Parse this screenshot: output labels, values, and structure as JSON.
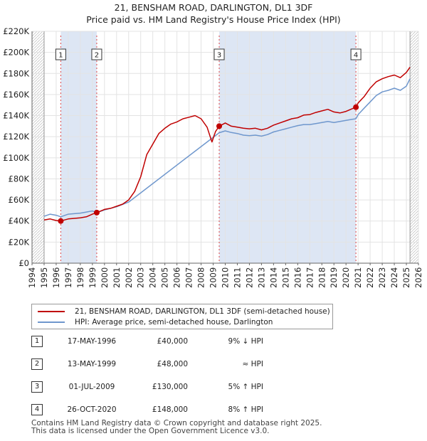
{
  "title_line1": "21, BENSHAM ROAD, DARLINGTON, DL1 3DF",
  "title_line2": "Price paid vs. HM Land Registry's House Price Index (HPI)",
  "colors": {
    "price_line": "#c00000",
    "hpi_line": "#6f97cd",
    "shade": "#dde6f4",
    "marker_line": "#dd4444"
  },
  "legend": {
    "price_label": "21, BENSHAM ROAD, DARLINGTON, DL1 3DF (semi-detached house)",
    "hpi_label": "HPI: Average price, semi-detached house, Darlington"
  },
  "transactions": [
    {
      "num": "1",
      "date": "17-MAY-1996",
      "price": "£40,000",
      "hpi": "9% ↓ HPI"
    },
    {
      "num": "2",
      "date": "13-MAY-1999",
      "price": "£48,000",
      "hpi": "≈ HPI"
    },
    {
      "num": "3",
      "date": "01-JUL-2009",
      "price": "£130,000",
      "hpi": "5% ↑ HPI"
    },
    {
      "num": "4",
      "date": "26-OCT-2020",
      "price": "£148,000",
      "hpi": "8% ↑ HPI"
    }
  ],
  "footer": {
    "line1": "Contains HM Land Registry data © Crown copyright and database right 2025.",
    "line2": "This data is licensed under the Open Government Licence v3.0."
  },
  "chart_data": {
    "type": "line",
    "title": "21, BENSHAM ROAD, DARLINGTON, DL1 3DF",
    "subtitle": "Price paid vs. HM Land Registry's House Price Index (HPI)",
    "xlabel": "",
    "ylabel": "",
    "xlim": [
      1994,
      2026
    ],
    "ylim": [
      0,
      220000
    ],
    "x_ticks": [
      "1994",
      "1995",
      "1996",
      "1997",
      "1998",
      "1999",
      "2000",
      "2001",
      "2002",
      "2003",
      "2004",
      "2005",
      "2006",
      "2007",
      "2008",
      "2009",
      "2010",
      "2011",
      "2012",
      "2013",
      "2014",
      "2015",
      "2016",
      "2017",
      "2018",
      "2019",
      "2020",
      "2021",
      "2022",
      "2023",
      "2024",
      "2025",
      "2026"
    ],
    "y_ticks": [
      "£0",
      "£20K",
      "£40K",
      "£60K",
      "£80K",
      "£100K",
      "£120K",
      "£140K",
      "£160K",
      "£180K",
      "£200K",
      "£220K"
    ],
    "y_tick_values": [
      0,
      20000,
      40000,
      60000,
      80000,
      100000,
      120000,
      140000,
      160000,
      180000,
      200000,
      220000
    ],
    "grid": true,
    "data_range_x": [
      1995.0,
      2025.3
    ],
    "shaded_periods": [
      [
        1996.38,
        1999.36
      ],
      [
        2009.5,
        2020.82
      ]
    ],
    "series": [
      {
        "name": "21, BENSHAM ROAD, DARLINGTON, DL1 3DF (semi-detached house)",
        "x": [
          1995.0,
          1995.5,
          1996.0,
          1996.38,
          1997.0,
          1997.5,
          1998.0,
          1998.5,
          1999.0,
          1999.36,
          2000.0,
          2000.5,
          2001.0,
          2001.5,
          2002.0,
          2002.5,
          2003.0,
          2003.5,
          2004.0,
          2004.5,
          2005.0,
          2005.5,
          2006.0,
          2006.5,
          2007.0,
          2007.5,
          2008.0,
          2008.5,
          2008.9,
          2009.2,
          2009.5,
          2010.0,
          2010.5,
          2011.0,
          2011.5,
          2012.0,
          2012.5,
          2013.0,
          2013.5,
          2014.0,
          2014.5,
          2015.0,
          2015.5,
          2016.0,
          2016.5,
          2017.0,
          2017.5,
          2018.0,
          2018.5,
          2019.0,
          2019.5,
          2020.0,
          2020.5,
          2020.82,
          2021.0,
          2021.5,
          2022.0,
          2022.5,
          2023.0,
          2023.5,
          2024.0,
          2024.5,
          2025.0,
          2025.3
        ],
        "values": [
          41000,
          42000,
          40500,
          40000,
          42000,
          42500,
          43000,
          44000,
          46500,
          48000,
          51000,
          52000,
          54000,
          56000,
          60000,
          68000,
          82000,
          103000,
          113000,
          123000,
          128000,
          132000,
          134000,
          137000,
          138500,
          140000,
          137000,
          129000,
          115000,
          125000,
          130000,
          133000,
          130000,
          129000,
          128000,
          127500,
          128000,
          126500,
          128000,
          131000,
          133000,
          135000,
          137000,
          138000,
          140500,
          141000,
          143000,
          144500,
          146000,
          143500,
          142500,
          144000,
          146500,
          148000,
          152000,
          158000,
          166000,
          172000,
          175000,
          177000,
          178500,
          176000,
          181000,
          186000
        ]
      },
      {
        "name": "HPI: Average price, semi-detached house, Darlington",
        "x": [
          1995.0,
          1995.5,
          1996.0,
          1996.38,
          1997.0,
          1997.5,
          1998.0,
          1998.5,
          1999.0,
          1999.36,
          2000.0,
          2001.0,
          2002.0,
          2009.5,
          2010.0,
          2010.5,
          2011.0,
          2011.5,
          2012.0,
          2012.5,
          2013.0,
          2013.5,
          2014.0,
          2014.5,
          2015.0,
          2015.5,
          2016.0,
          2016.5,
          2017.0,
          2017.5,
          2018.0,
          2018.5,
          2019.0,
          2019.5,
          2020.0,
          2020.5,
          2020.82,
          2021.0,
          2021.5,
          2022.0,
          2022.5,
          2023.0,
          2023.5,
          2024.0,
          2024.5,
          2025.0,
          2025.3
        ],
        "values": [
          44500,
          46500,
          45500,
          44000,
          46500,
          47000,
          47500,
          48500,
          49500,
          48000,
          50500,
          53500,
          58000,
          123800,
          125500,
          124000,
          123000,
          121500,
          121000,
          121500,
          120500,
          122000,
          124500,
          126000,
          127500,
          129000,
          130500,
          131500,
          131500,
          132500,
          133500,
          134500,
          133500,
          134500,
          135500,
          136500,
          137000,
          141000,
          147000,
          153000,
          159000,
          162500,
          164000,
          166000,
          164000,
          168000,
          175000
        ]
      }
    ],
    "transaction_points": [
      {
        "label": "1",
        "x": 1996.38,
        "y": 40000
      },
      {
        "label": "2",
        "x": 1999.36,
        "y": 48000
      },
      {
        "label": "3",
        "x": 2009.5,
        "y": 130000
      },
      {
        "label": "4",
        "x": 2020.82,
        "y": 148000
      }
    ]
  }
}
